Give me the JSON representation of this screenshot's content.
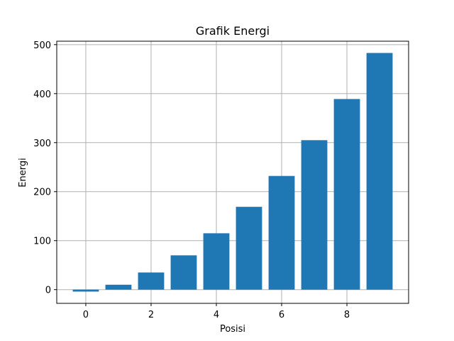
{
  "chart_data": {
    "type": "bar",
    "title": "Grafik Energi",
    "xlabel": "Posisi",
    "ylabel": "Energi",
    "x": [
      0,
      1,
      2,
      3,
      4,
      5,
      6,
      7,
      8,
      9
    ],
    "values": [
      -4,
      10,
      35,
      70,
      115,
      169,
      232,
      305,
      389,
      483
    ],
    "xlim": [
      -0.89,
      9.89
    ],
    "ylim": [
      -28,
      507
    ],
    "xticks": [
      0,
      2,
      4,
      6,
      8
    ],
    "yticks": [
      0,
      100,
      200,
      300,
      400,
      500
    ],
    "grid": true,
    "bar_color": "#1f77b4",
    "grid_color": "#b0b0b0"
  }
}
